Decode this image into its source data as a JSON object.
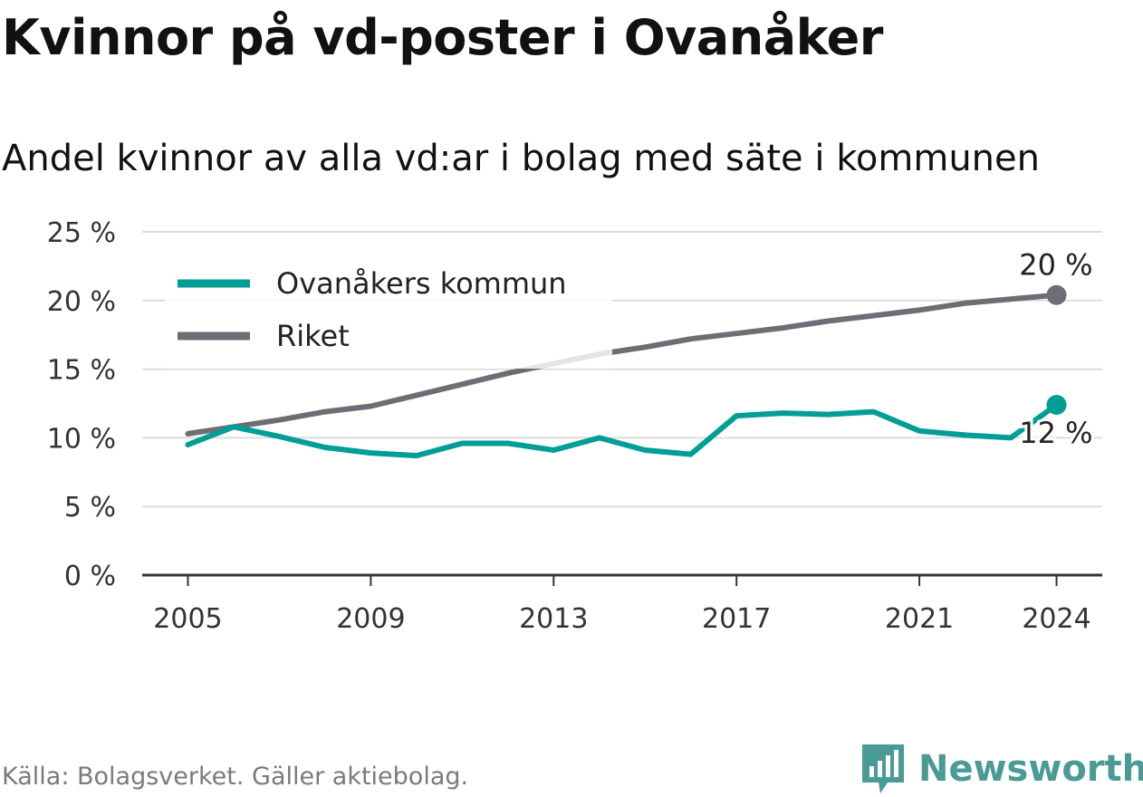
{
  "title": "Kvinnor på vd-poster i Ovanåker",
  "subtitle": "Andel kvinnor av alla vd:ar i bolag med säte i kommunen",
  "source": "Källa: Bolagsverket. Gäller aktiebolag.",
  "brand": {
    "name": "Newsworthy",
    "color": "#4a9a96",
    "icon": "bar-chart-logo-icon"
  },
  "colors": {
    "grid": "#dddddd",
    "axis": "#333333",
    "text": "#333333"
  },
  "chart_data": {
    "type": "line",
    "title": "Kvinnor på vd-poster i Ovanåker",
    "subtitle": "Andel kvinnor av alla vd:ar i bolag med säte i kommunen",
    "xlabel": "",
    "ylabel": "",
    "x": [
      2005,
      2006,
      2007,
      2008,
      2009,
      2010,
      2011,
      2012,
      2013,
      2014,
      2015,
      2016,
      2017,
      2018,
      2019,
      2020,
      2021,
      2022,
      2023,
      2024
    ],
    "xticks": [
      2005,
      2009,
      2013,
      2017,
      2021,
      2024
    ],
    "xlim": [
      2004,
      2025
    ],
    "ylim": [
      0,
      25
    ],
    "yticks": [
      {
        "value": 0,
        "label": "0 %"
      },
      {
        "value": 5,
        "label": "5 %"
      },
      {
        "value": 10,
        "label": "10 %"
      },
      {
        "value": 15,
        "label": "15 %"
      },
      {
        "value": 20,
        "label": "20 %"
      },
      {
        "value": 25,
        "label": "25 %"
      }
    ],
    "grid": true,
    "legend": "top-left",
    "series": [
      {
        "name": "Ovanåkers kommun",
        "color": "#009e96",
        "values": [
          9.5,
          10.8,
          10.1,
          9.3,
          8.9,
          8.7,
          9.6,
          9.6,
          9.1,
          10.0,
          9.1,
          8.8,
          11.6,
          11.8,
          11.7,
          11.9,
          10.5,
          10.2,
          10.0,
          12.4
        ],
        "end_label": "12 %"
      },
      {
        "name": "Riket",
        "color": "#6e6d75",
        "values": [
          10.3,
          10.8,
          11.3,
          11.9,
          12.3,
          13.1,
          13.9,
          14.7,
          15.4,
          16.1,
          16.6,
          17.2,
          17.6,
          18.0,
          18.5,
          18.9,
          19.3,
          19.8,
          20.1,
          20.4
        ],
        "end_label": "20 %"
      }
    ]
  }
}
